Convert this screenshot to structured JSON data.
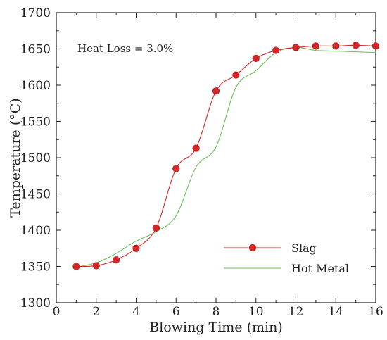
{
  "chart_data": {
    "type": "line",
    "xlabel": "Blowing Time (min)",
    "ylabel": "Temperature (°C)",
    "xlim": [
      0,
      16
    ],
    "ylim": [
      1300,
      1700
    ],
    "xticks": [
      0,
      2,
      4,
      6,
      8,
      10,
      12,
      14,
      16
    ],
    "yticks": [
      1300,
      1350,
      1400,
      1450,
      1500,
      1550,
      1600,
      1650,
      1700
    ],
    "annotation": "Heat Loss = 3.0%",
    "grid": false,
    "legend_position": "bottom-right",
    "series": [
      {
        "name": "Slag",
        "color": "#d62728",
        "marker": "circle",
        "x": [
          1,
          2,
          3,
          4,
          5,
          6,
          7,
          8,
          9,
          10,
          11,
          12,
          13,
          14,
          15,
          16
        ],
        "y": [
          1350,
          1351,
          1359,
          1375,
          1403,
          1485,
          1513,
          1592,
          1614,
          1637,
          1648,
          1652,
          1654,
          1654,
          1655,
          1654
        ]
      },
      {
        "name": "Hot Metal",
        "color": "#6cbf5a",
        "marker": "none",
        "x": [
          1,
          2,
          3,
          4,
          5,
          6,
          7,
          8,
          9,
          10,
          11,
          12,
          13,
          14,
          15,
          16
        ],
        "y": [
          1349,
          1355,
          1368,
          1385,
          1398,
          1420,
          1487,
          1515,
          1597,
          1620,
          1645,
          1652,
          1648,
          1647,
          1646,
          1645
        ]
      }
    ]
  }
}
